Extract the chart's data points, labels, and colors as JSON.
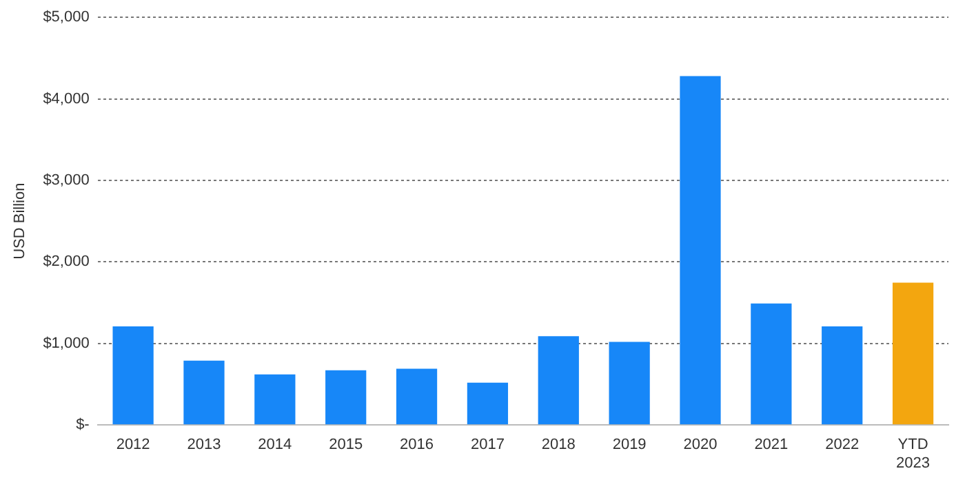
{
  "chart_data": {
    "type": "bar",
    "ylabel": "USD Billion",
    "categories": [
      "2012",
      "2013",
      "2014",
      "2015",
      "2016",
      "2017",
      "2018",
      "2019",
      "2020",
      "2021",
      "2022",
      "YTD\n2023"
    ],
    "values": [
      1210,
      790,
      620,
      670,
      690,
      520,
      1090,
      1020,
      4280,
      1490,
      1210,
      1745
    ],
    "colors": [
      "#1787f8",
      "#1787f8",
      "#1787f8",
      "#1787f8",
      "#1787f8",
      "#1787f8",
      "#1787f8",
      "#1787f8",
      "#1787f8",
      "#1787f8",
      "#1787f8",
      "#f3a60f"
    ],
    "ylim": [
      0,
      5000
    ],
    "yticks": [
      {
        "value": 0,
        "label": "$-"
      },
      {
        "value": 1000,
        "label": "$1,000"
      },
      {
        "value": 2000,
        "label": "$2,000"
      },
      {
        "value": 3000,
        "label": "$3,000"
      },
      {
        "value": 4000,
        "label": "$4,000"
      },
      {
        "value": 5000,
        "label": "$5,000"
      }
    ],
    "grid": "y",
    "legend": false
  }
}
